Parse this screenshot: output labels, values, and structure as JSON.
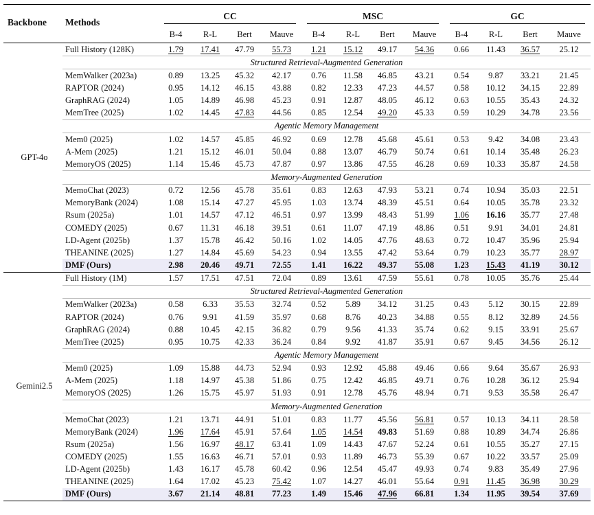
{
  "header": {
    "backbone": "Backbone",
    "methods": "Methods",
    "groups": [
      "CC",
      "MSC",
      "GC"
    ],
    "metrics": [
      "B-4",
      "R-L",
      "Bert",
      "Mauve"
    ]
  },
  "blocks": [
    {
      "backbone": "GPT-4o",
      "rows": [
        {
          "method": "Full History (128K)",
          "values": [
            "1.79",
            "17.41",
            "47.79",
            "55.73",
            "1.21",
            "15.12",
            "49.17",
            "54.36",
            "0.66",
            "11.43",
            "36.57",
            "25.12"
          ],
          "underline": [
            0,
            1,
            3,
            4,
            5,
            7,
            10
          ]
        },
        {
          "section": "Structured Retrieval-Augmented Generation"
        },
        {
          "method": "MemWalker (2023a)",
          "values": [
            "0.89",
            "13.25",
            "45.32",
            "42.17",
            "0.76",
            "11.58",
            "46.85",
            "43.21",
            "0.54",
            "9.87",
            "33.21",
            "21.45"
          ]
        },
        {
          "method": "RAPTOR (2024)",
          "values": [
            "0.95",
            "14.12",
            "46.15",
            "43.88",
            "0.82",
            "12.33",
            "47.23",
            "44.57",
            "0.58",
            "10.12",
            "34.15",
            "22.89"
          ]
        },
        {
          "method": "GraphRAG (2024)",
          "values": [
            "1.05",
            "14.89",
            "46.98",
            "45.23",
            "0.91",
            "12.87",
            "48.05",
            "46.12",
            "0.63",
            "10.55",
            "35.43",
            "24.32"
          ]
        },
        {
          "method": "MemTree (2025)",
          "values": [
            "1.02",
            "14.45",
            "47.83",
            "44.56",
            "0.85",
            "12.54",
            "49.20",
            "45.33",
            "0.59",
            "10.29",
            "34.78",
            "23.56"
          ],
          "underline": [
            2,
            6
          ]
        },
        {
          "section": "Agentic Memory Management"
        },
        {
          "method": "Mem0 (2025)",
          "values": [
            "1.02",
            "14.57",
            "45.85",
            "46.92",
            "0.69",
            "12.78",
            "45.68",
            "45.61",
            "0.53",
            "9.42",
            "34.08",
            "23.43"
          ]
        },
        {
          "method": "A-Mem (2025)",
          "values": [
            "1.21",
            "15.12",
            "46.01",
            "50.04",
            "0.88",
            "13.07",
            "46.79",
            "50.74",
            "0.61",
            "10.14",
            "35.48",
            "26.23"
          ]
        },
        {
          "method": "MemoryOS (2025)",
          "values": [
            "1.14",
            "15.46",
            "45.73",
            "47.87",
            "0.97",
            "13.86",
            "47.55",
            "46.28",
            "0.69",
            "10.33",
            "35.87",
            "24.58"
          ]
        },
        {
          "section": "Memory-Augmented Generation"
        },
        {
          "method": "MemoChat (2023)",
          "values": [
            "0.72",
            "12.56",
            "45.78",
            "35.61",
            "0.83",
            "12.63",
            "47.93",
            "53.21",
            "0.74",
            "10.94",
            "35.03",
            "22.51"
          ]
        },
        {
          "method": "MemoryBank (2024)",
          "values": [
            "1.08",
            "15.14",
            "47.27",
            "45.95",
            "1.03",
            "13.74",
            "48.39",
            "45.51",
            "0.64",
            "10.05",
            "35.78",
            "23.32"
          ]
        },
        {
          "method": "Rsum (2025a)",
          "values": [
            "1.01",
            "14.57",
            "47.12",
            "46.51",
            "0.97",
            "13.99",
            "48.43",
            "51.99",
            "1.06",
            "16.16",
            "35.77",
            "27.48"
          ],
          "underline": [
            8
          ],
          "bold": [
            9
          ]
        },
        {
          "method": "COMEDY (2025)",
          "values": [
            "0.67",
            "11.31",
            "46.18",
            "39.51",
            "0.61",
            "11.07",
            "47.19",
            "48.86",
            "0.51",
            "9.91",
            "34.01",
            "24.81"
          ]
        },
        {
          "method": "LD-Agent (2025b)",
          "values": [
            "1.37",
            "15.78",
            "46.42",
            "50.16",
            "1.02",
            "14.05",
            "47.76",
            "48.63",
            "0.72",
            "10.47",
            "35.96",
            "25.94"
          ]
        },
        {
          "method": "THEANINE (2025)",
          "values": [
            "1.27",
            "14.84",
            "45.69",
            "54.23",
            "0.94",
            "13.55",
            "47.42",
            "53.64",
            "0.79",
            "10.23",
            "35.77",
            "28.97"
          ],
          "underline": [
            11
          ]
        },
        {
          "method": "DMF (Ours)",
          "dmf": true,
          "values": [
            "2.98",
            "20.46",
            "49.71",
            "72.55",
            "1.41",
            "16.22",
            "49.37",
            "55.08",
            "1.23",
            "15.43",
            "41.19",
            "30.12"
          ],
          "underline": [
            9
          ]
        }
      ]
    },
    {
      "backbone": "Gemini2.5",
      "rows": [
        {
          "method": "Full History (1M)",
          "values": [
            "1.57",
            "17.51",
            "47.51",
            "72.04",
            "0.89",
            "13.61",
            "47.59",
            "55.61",
            "0.78",
            "10.05",
            "35.76",
            "25.44"
          ]
        },
        {
          "section": "Structured Retrieval-Augmented Generation"
        },
        {
          "method": "MemWalker (2023a)",
          "values": [
            "0.58",
            "6.33",
            "35.53",
            "32.74",
            "0.52",
            "5.89",
            "34.12",
            "31.25",
            "0.43",
            "5.12",
            "30.15",
            "22.89"
          ]
        },
        {
          "method": "RAPTOR (2024)",
          "values": [
            "0.76",
            "9.91",
            "41.59",
            "35.97",
            "0.68",
            "8.76",
            "40.23",
            "34.88",
            "0.55",
            "8.12",
            "32.89",
            "24.56"
          ]
        },
        {
          "method": "GraphRAG (2024)",
          "values": [
            "0.88",
            "10.45",
            "42.15",
            "36.82",
            "0.79",
            "9.56",
            "41.33",
            "35.74",
            "0.62",
            "9.15",
            "33.91",
            "25.67"
          ]
        },
        {
          "method": "MemTree (2025)",
          "values": [
            "0.95",
            "10.75",
            "42.33",
            "36.24",
            "0.84",
            "9.92",
            "41.87",
            "35.91",
            "0.67",
            "9.45",
            "34.56",
            "26.12"
          ]
        },
        {
          "section": "Agentic Memory Management"
        },
        {
          "method": "Mem0 (2025)",
          "values": [
            "1.09",
            "15.88",
            "44.73",
            "52.94",
            "0.93",
            "12.92",
            "45.88",
            "49.46",
            "0.66",
            "9.64",
            "35.67",
            "26.93"
          ]
        },
        {
          "method": "A-Mem (2025)",
          "values": [
            "1.18",
            "14.97",
            "45.38",
            "51.86",
            "0.75",
            "12.42",
            "46.85",
            "49.71",
            "0.76",
            "10.28",
            "36.12",
            "25.94"
          ]
        },
        {
          "method": "MemoryOS (2025)",
          "values": [
            "1.26",
            "15.75",
            "45.97",
            "51.93",
            "0.91",
            "12.78",
            "45.76",
            "48.94",
            "0.71",
            "9.53",
            "35.58",
            "26.47"
          ]
        },
        {
          "section": "Memory-Augmented Generation"
        },
        {
          "method": "MemoChat (2023)",
          "values": [
            "1.21",
            "13.71",
            "44.91",
            "51.01",
            "0.83",
            "11.77",
            "45.56",
            "56.81",
            "0.57",
            "10.13",
            "34.11",
            "28.58"
          ],
          "underline": [
            7
          ]
        },
        {
          "method": "MemoryBank (2024)",
          "values": [
            "1.96",
            "17.64",
            "45.91",
            "57.64",
            "1.05",
            "14.54",
            "49.83",
            "51.69",
            "0.88",
            "10.89",
            "34.74",
            "26.86"
          ],
          "underline": [
            0,
            1,
            4,
            5
          ],
          "bold": [
            6
          ]
        },
        {
          "method": "Rsum (2025a)",
          "values": [
            "1.56",
            "16.97",
            "48.17",
            "63.41",
            "1.09",
            "14.43",
            "47.67",
            "52.24",
            "0.61",
            "10.55",
            "35.27",
            "27.15"
          ],
          "underline": [
            2
          ]
        },
        {
          "method": "COMEDY (2025)",
          "values": [
            "1.55",
            "16.63",
            "46.71",
            "57.01",
            "0.93",
            "11.89",
            "46.73",
            "55.39",
            "0.67",
            "10.22",
            "33.57",
            "25.09"
          ]
        },
        {
          "method": "LD-Agent (2025b)",
          "values": [
            "1.43",
            "16.17",
            "45.78",
            "60.42",
            "0.96",
            "12.54",
            "45.47",
            "49.93",
            "0.74",
            "9.83",
            "35.49",
            "27.96"
          ]
        },
        {
          "method": "THEANINE (2025)",
          "values": [
            "1.64",
            "17.02",
            "45.23",
            "75.42",
            "1.07",
            "14.27",
            "46.01",
            "55.64",
            "0.91",
            "11.45",
            "36.98",
            "30.29"
          ],
          "underline": [
            3,
            8,
            9,
            10,
            11
          ]
        },
        {
          "method": "DMF (Ours)",
          "dmf": true,
          "values": [
            "3.67",
            "21.14",
            "48.81",
            "77.23",
            "1.49",
            "15.46",
            "47.96",
            "66.81",
            "1.34",
            "11.95",
            "39.54",
            "37.69"
          ],
          "underline": [
            6
          ]
        }
      ]
    }
  ]
}
